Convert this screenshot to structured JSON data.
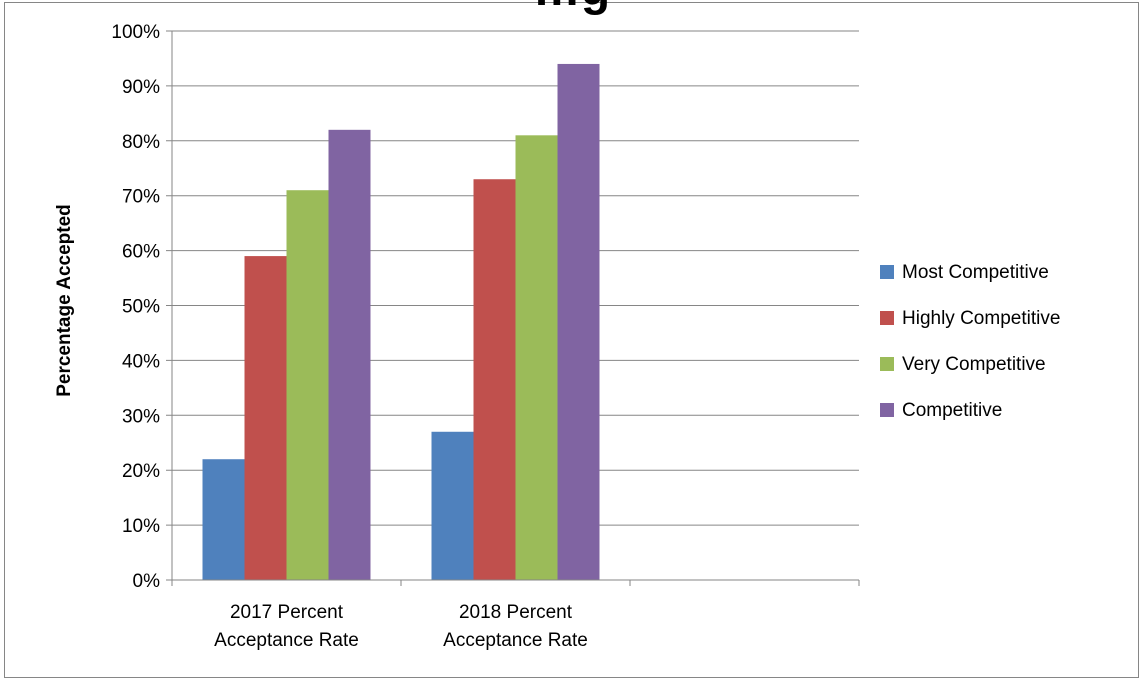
{
  "chart_data": {
    "type": "bar",
    "title": "…g",
    "xlabel": "",
    "ylabel": "Percentage Accepted",
    "ylim": [
      0,
      100
    ],
    "yticks": [
      "0%",
      "10%",
      "20%",
      "30%",
      "40%",
      "50%",
      "60%",
      "70%",
      "80%",
      "90%",
      "100%"
    ],
    "categories": [
      [
        "2017 Percent",
        "Acceptance Rate"
      ],
      [
        "2018 Percent",
        "Acceptance Rate"
      ]
    ],
    "series": [
      {
        "name": "Most Competitive",
        "color": "#4f81bd",
        "values": [
          22,
          27
        ]
      },
      {
        "name": "Highly Competitive",
        "color": "#c0504d",
        "values": [
          59,
          73
        ]
      },
      {
        "name": "Very Competitive",
        "color": "#9bbb59",
        "values": [
          71,
          81
        ]
      },
      {
        "name": "Competitive",
        "color": "#8064a2",
        "values": [
          82,
          94
        ]
      }
    ],
    "grid": true,
    "legend_position": "right"
  }
}
